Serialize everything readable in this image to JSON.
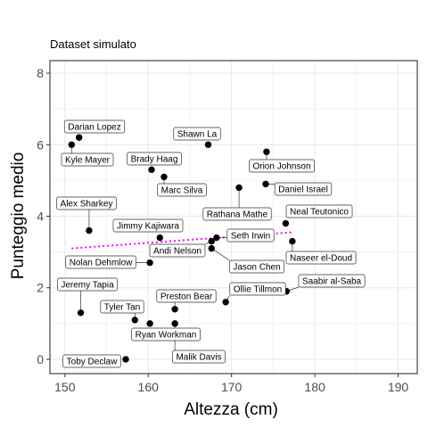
{
  "chart_data": {
    "type": "scatter",
    "title": "",
    "subtitle": "Dataset simulato",
    "xlabel": "Altezza (cm)",
    "ylabel": "Punteggio medio",
    "xlim": [
      148.2,
      192.3
    ],
    "ylim": [
      -0.4,
      8.35
    ],
    "xticks": [
      150,
      160,
      170,
      180,
      190
    ],
    "yticks": [
      0,
      2,
      4,
      6,
      8
    ],
    "grid": true,
    "legend": "none",
    "colors": {
      "point": "#000000",
      "trend": "#ff00ff",
      "grid": "#ebebeb",
      "panel_border": "#333333",
      "label_border": "#333333"
    },
    "points": [
      {
        "name": "Darian Lopez",
        "x": 151.7,
        "y": 6.2
      },
      {
        "name": "Kyle Mayer",
        "x": 150.8,
        "y": 6.0
      },
      {
        "name": "Shawn La",
        "x": 167.2,
        "y": 6.0
      },
      {
        "name": "Orion Johnson",
        "x": 174.2,
        "y": 5.8
      },
      {
        "name": "Brady Haag",
        "x": 160.4,
        "y": 5.3
      },
      {
        "name": "Marc Silva",
        "x": 161.9,
        "y": 5.1
      },
      {
        "name": "Daniel Israel",
        "x": 174.1,
        "y": 4.9
      },
      {
        "name": "Rathana Mathe",
        "x": 170.9,
        "y": 4.8
      },
      {
        "name": "Alex Sharkey",
        "x": 152.9,
        "y": 3.6
      },
      {
        "name": "Neal Teutonico",
        "x": 176.5,
        "y": 3.8
      },
      {
        "name": "Jimmy Kajiwara",
        "x": 161.4,
        "y": 3.4
      },
      {
        "name": "Seth Irwin",
        "x": 168.2,
        "y": 3.4
      },
      {
        "name": "Andi Nelson",
        "x": 167.6,
        "y": 3.3
      },
      {
        "name": "Jason Chen",
        "x": 167.6,
        "y": 3.1
      },
      {
        "name": "Naseer el-Doud",
        "x": 177.3,
        "y": 3.3
      },
      {
        "name": "Nolan Dehmlow",
        "x": 160.2,
        "y": 2.7
      },
      {
        "name": "Saabir al-Saba",
        "x": 176.6,
        "y": 1.9
      },
      {
        "name": "Ollie Tillmon",
        "x": 169.3,
        "y": 1.6
      },
      {
        "name": "Jeremy Tapia",
        "x": 151.9,
        "y": 1.3
      },
      {
        "name": "Preston Bear",
        "x": 163.2,
        "y": 1.4
      },
      {
        "name": "Tyler Tan",
        "x": 158.4,
        "y": 1.1
      },
      {
        "name": "Ryan Workman",
        "x": 160.2,
        "y": 1.0
      },
      {
        "name": "Malik Davis",
        "x": 163.2,
        "y": 1.0
      },
      {
        "name": "Toby Declaw",
        "x": 157.3,
        "y": 0.0
      }
    ],
    "trend": {
      "style": "dotted",
      "x": [
        150.8,
        177.3
      ],
      "y": [
        3.1,
        3.55
      ]
    }
  }
}
